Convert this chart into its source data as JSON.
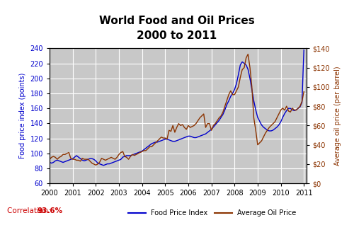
{
  "title_line1": "World Food and Oil Prices",
  "title_line2": "2000 to 2011",
  "ylabel_left": "Food price index (points)",
  "ylabel_right": "Average oil price (per barrel)",
  "correlation_text": "Correlation: 93.6%",
  "legend_food": "Food Price Index",
  "legend_oil": "Average Oil Price",
  "food_color": "#0000CC",
  "oil_color": "#8B3300",
  "corr_color": "#CC0000",
  "bg_color": "#C8C8C8",
  "fig_bg": "#FFFFFF",
  "ylim_left": [
    60,
    240
  ],
  "ylim_right": [
    0,
    140
  ],
  "yticks_left": [
    60,
    80,
    100,
    120,
    140,
    160,
    180,
    200,
    220,
    240
  ],
  "yticks_right": [
    0,
    20,
    40,
    60,
    80,
    100,
    120,
    140
  ],
  "xticks": [
    2000,
    2001,
    2002,
    2003,
    2004,
    2005,
    2006,
    2007,
    2008,
    2009,
    2010,
    2011
  ],
  "xlim": [
    2000,
    2011.1
  ],
  "food_x": [
    2000.0,
    2000.083,
    2000.167,
    2000.25,
    2000.333,
    2000.417,
    2000.5,
    2000.583,
    2000.667,
    2000.75,
    2000.833,
    2000.917,
    2001.0,
    2001.083,
    2001.167,
    2001.25,
    2001.333,
    2001.417,
    2001.5,
    2001.583,
    2001.667,
    2001.75,
    2001.833,
    2001.917,
    2002.0,
    2002.083,
    2002.167,
    2002.25,
    2002.333,
    2002.417,
    2002.5,
    2002.583,
    2002.667,
    2002.75,
    2002.833,
    2002.917,
    2003.0,
    2003.083,
    2003.167,
    2003.25,
    2003.333,
    2003.417,
    2003.5,
    2003.583,
    2003.667,
    2003.75,
    2003.833,
    2003.917,
    2004.0,
    2004.083,
    2004.167,
    2004.25,
    2004.333,
    2004.417,
    2004.5,
    2004.583,
    2004.667,
    2004.75,
    2004.833,
    2004.917,
    2005.0,
    2005.083,
    2005.167,
    2005.25,
    2005.333,
    2005.417,
    2005.5,
    2005.583,
    2005.667,
    2005.75,
    2005.833,
    2005.917,
    2006.0,
    2006.083,
    2006.167,
    2006.25,
    2006.333,
    2006.417,
    2006.5,
    2006.583,
    2006.667,
    2006.75,
    2006.833,
    2006.917,
    2007.0,
    2007.083,
    2007.167,
    2007.25,
    2007.333,
    2007.417,
    2007.5,
    2007.583,
    2007.667,
    2007.75,
    2007.833,
    2007.917,
    2008.0,
    2008.083,
    2008.167,
    2008.25,
    2008.333,
    2008.417,
    2008.5,
    2008.583,
    2008.667,
    2008.75,
    2008.833,
    2008.917,
    2009.0,
    2009.083,
    2009.167,
    2009.25,
    2009.333,
    2009.417,
    2009.5,
    2009.583,
    2009.667,
    2009.75,
    2009.833,
    2009.917,
    2010.0,
    2010.083,
    2010.167,
    2010.25,
    2010.333,
    2010.417,
    2010.5,
    2010.583,
    2010.667,
    2010.75,
    2010.833,
    2010.917,
    2011.0
  ],
  "food_y": [
    88,
    87,
    88,
    90,
    91,
    90,
    89,
    88,
    89,
    90,
    91,
    92,
    93,
    95,
    97,
    95,
    93,
    91,
    90,
    91,
    92,
    93,
    93,
    92,
    90,
    87,
    86,
    85,
    84,
    85,
    86,
    86,
    87,
    88,
    89,
    90,
    91,
    92,
    95,
    96,
    97,
    97,
    97,
    98,
    99,
    100,
    101,
    102,
    103,
    105,
    107,
    109,
    111,
    113,
    114,
    115,
    115,
    116,
    117,
    118,
    119,
    119,
    118,
    117,
    116,
    116,
    117,
    118,
    119,
    120,
    121,
    122,
    123,
    123,
    122,
    121,
    121,
    122,
    123,
    124,
    125,
    126,
    128,
    130,
    132,
    135,
    138,
    141,
    144,
    148,
    152,
    158,
    165,
    170,
    176,
    180,
    185,
    193,
    205,
    218,
    222,
    220,
    218,
    212,
    200,
    185,
    170,
    158,
    148,
    143,
    138,
    135,
    133,
    131,
    130,
    130,
    131,
    133,
    135,
    138,
    142,
    148,
    153,
    157,
    160,
    160,
    158,
    157,
    158,
    160,
    162,
    168,
    238
  ],
  "oil_x": [
    2000.0,
    2000.083,
    2000.167,
    2000.25,
    2000.333,
    2000.417,
    2000.5,
    2000.583,
    2000.667,
    2000.75,
    2000.833,
    2000.917,
    2001.0,
    2001.083,
    2001.167,
    2001.25,
    2001.333,
    2001.417,
    2001.5,
    2001.583,
    2001.667,
    2001.75,
    2001.833,
    2001.917,
    2002.0,
    2002.083,
    2002.167,
    2002.25,
    2002.333,
    2002.417,
    2002.5,
    2002.583,
    2002.667,
    2002.75,
    2002.833,
    2002.917,
    2003.0,
    2003.083,
    2003.167,
    2003.25,
    2003.333,
    2003.417,
    2003.5,
    2003.583,
    2003.667,
    2003.75,
    2003.833,
    2003.917,
    2004.0,
    2004.083,
    2004.167,
    2004.25,
    2004.333,
    2004.417,
    2004.5,
    2004.583,
    2004.667,
    2004.75,
    2004.833,
    2004.917,
    2005.0,
    2005.083,
    2005.167,
    2005.25,
    2005.333,
    2005.417,
    2005.5,
    2005.583,
    2005.667,
    2005.75,
    2005.833,
    2005.917,
    2006.0,
    2006.083,
    2006.167,
    2006.25,
    2006.333,
    2006.417,
    2006.5,
    2006.583,
    2006.667,
    2006.75,
    2006.833,
    2006.917,
    2007.0,
    2007.083,
    2007.167,
    2007.25,
    2007.333,
    2007.417,
    2007.5,
    2007.583,
    2007.667,
    2007.75,
    2007.833,
    2007.917,
    2008.0,
    2008.083,
    2008.167,
    2008.25,
    2008.333,
    2008.417,
    2008.5,
    2008.583,
    2008.667,
    2008.75,
    2008.833,
    2008.917,
    2009.0,
    2009.083,
    2009.167,
    2009.25,
    2009.333,
    2009.417,
    2009.5,
    2009.583,
    2009.667,
    2009.75,
    2009.833,
    2009.917,
    2010.0,
    2010.083,
    2010.167,
    2010.25,
    2010.333,
    2010.417,
    2010.5,
    2010.583,
    2010.667,
    2010.75,
    2010.833,
    2010.917,
    2011.0
  ],
  "oil_y": [
    25,
    27,
    28,
    27,
    25,
    27,
    28,
    30,
    30,
    31,
    32,
    26,
    25,
    25,
    24,
    24,
    23,
    26,
    25,
    25,
    25,
    23,
    21,
    20,
    19,
    20,
    22,
    26,
    25,
    24,
    25,
    26,
    27,
    26,
    25,
    27,
    30,
    32,
    33,
    28,
    27,
    25,
    28,
    30,
    29,
    30,
    31,
    32,
    33,
    34,
    34,
    36,
    38,
    38,
    40,
    42,
    44,
    46,
    48,
    47,
    47,
    46,
    55,
    54,
    60,
    53,
    58,
    62,
    60,
    61,
    58,
    56,
    60,
    58,
    59,
    60,
    62,
    65,
    68,
    70,
    72,
    58,
    62,
    62,
    55,
    60,
    62,
    65,
    68,
    70,
    74,
    80,
    86,
    92,
    96,
    92,
    92,
    96,
    100,
    110,
    118,
    120,
    130,
    134,
    120,
    100,
    68,
    55,
    40,
    42,
    44,
    48,
    52,
    55,
    58,
    60,
    62,
    64,
    68,
    72,
    76,
    78,
    76,
    80,
    75,
    74,
    78,
    76,
    76,
    78,
    80,
    85,
    95
  ]
}
